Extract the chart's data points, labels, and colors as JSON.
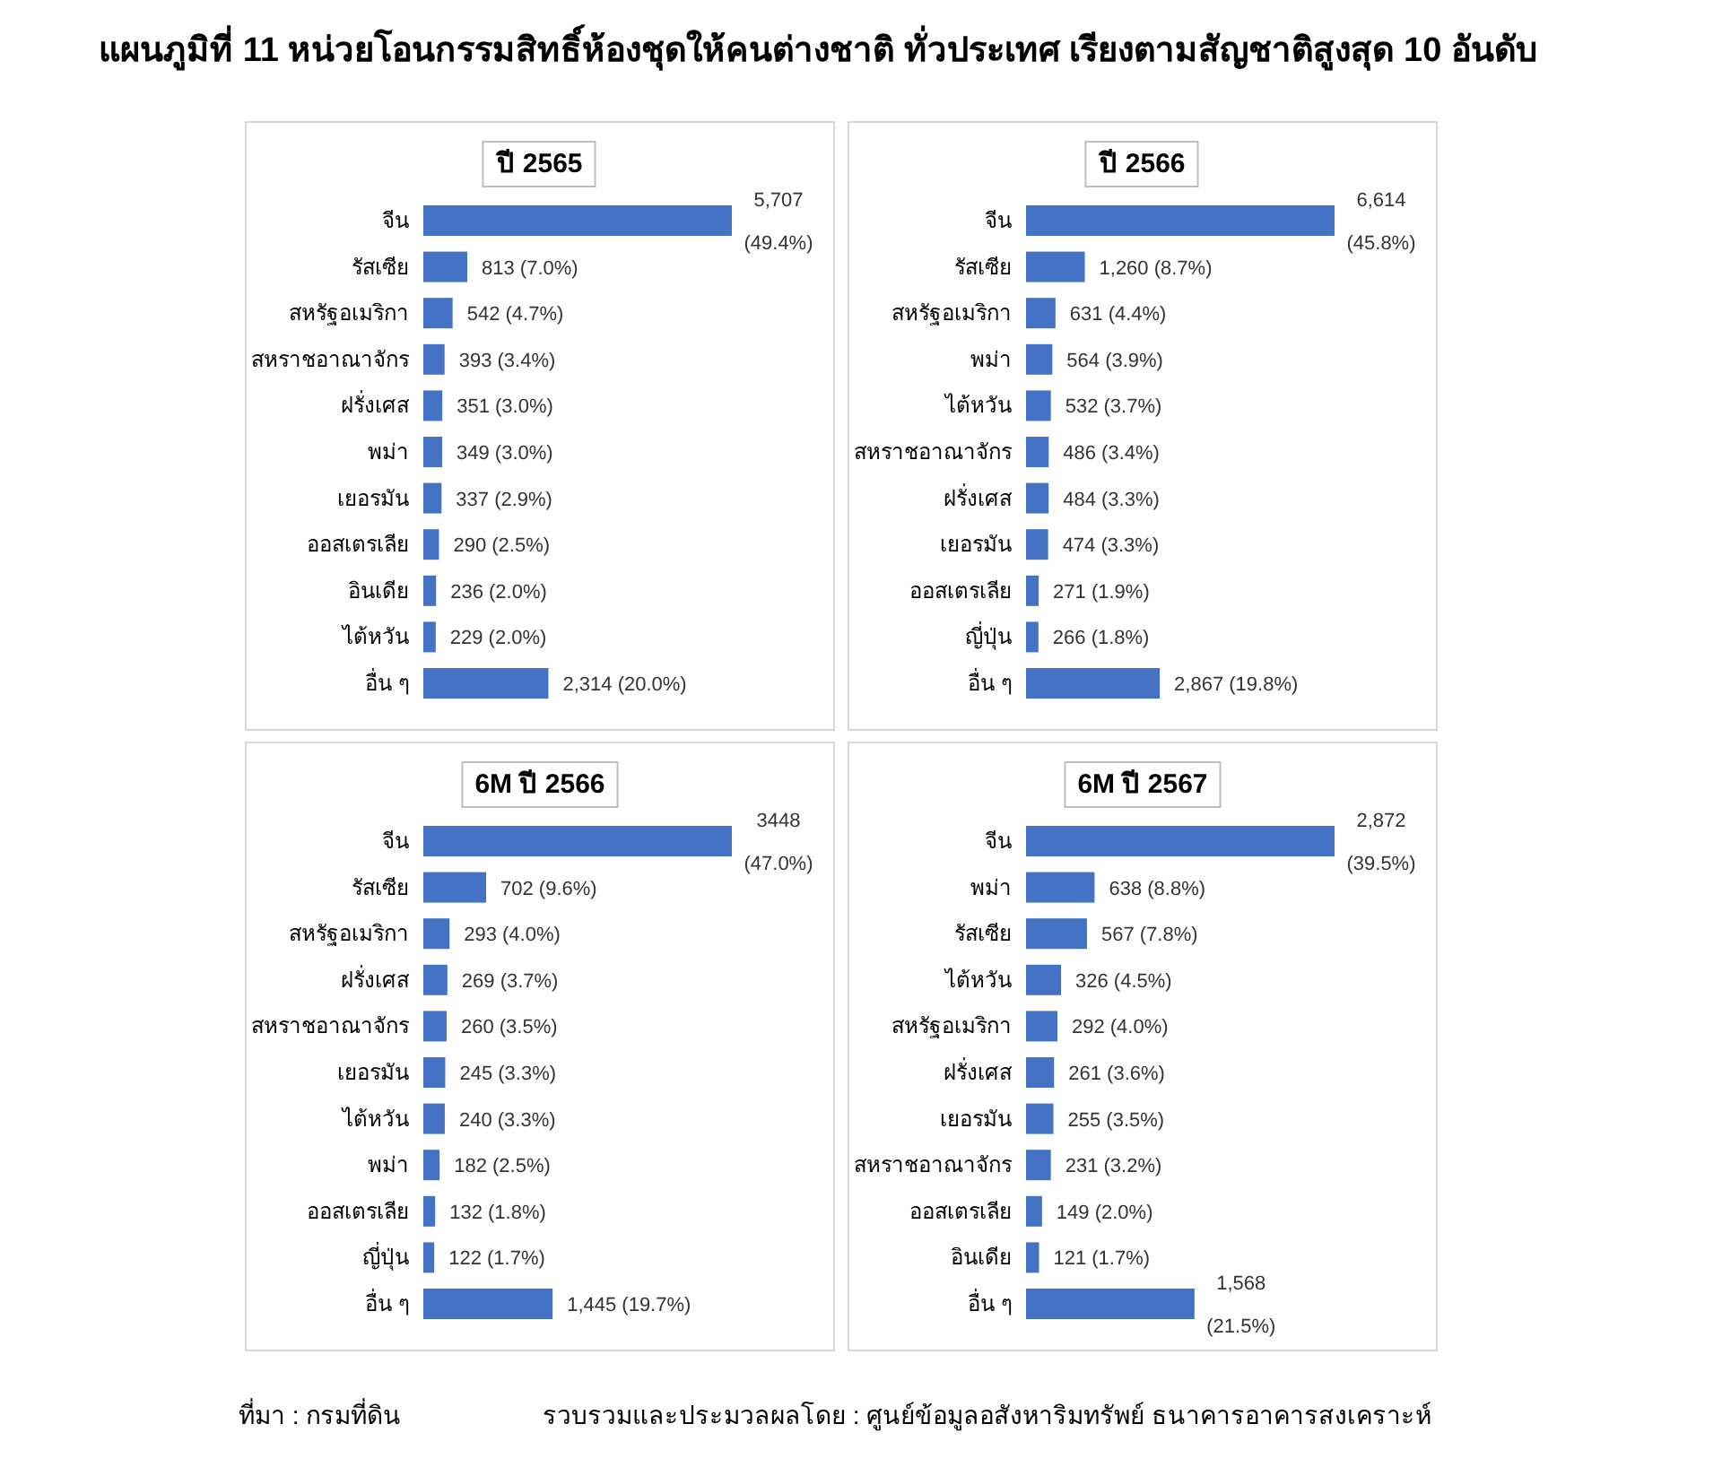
{
  "chart_data": [
    {
      "type": "other",
      "title": "แผนภูมิที่ 11 หน่วยโอนกรรมสิทธิ์ห้องชุดให้คนต่างชาติ ทั่วประเทศ  เรียงตามสัญชาติสูงสุด 10 อันดับ",
      "annotations": [
        "ที่มา : กรมที่ดิน",
        "รวบรวมและประมวลผลโดย : ศูนย์ข้อมูลอสังหาริมทรัพย์ ธนาคารอาคารสงเคราะห์"
      ]
    },
    {
      "type": "bar",
      "orientation": "horizontal",
      "title": "ปี 2565",
      "color": "#4472c4",
      "categories": [
        "จีน",
        "รัสเซีย",
        "สหรัฐอเมริกา",
        "สหราชอาณาจักร",
        "ฝรั่งเศส",
        "พม่า",
        "เยอรมัน",
        "ออสเตรเลีย",
        "อินเดีย",
        "ไต้หวัน",
        "อื่น ๆ"
      ],
      "values": [
        5707,
        813,
        542,
        393,
        351,
        349,
        337,
        290,
        236,
        229,
        2314
      ],
      "value_labels": [
        "5,707 (49.4%)",
        "813 (7.0%)",
        "542 (4.7%)",
        "393 (3.4%)",
        "351 (3.0%)",
        "349 (3.0%)",
        "337 (2.9%)",
        "290 (2.5%)",
        "236 (2.0%)",
        "229 (2.0%)",
        "2,314 (20.0%)"
      ]
    },
    {
      "type": "bar",
      "orientation": "horizontal",
      "title": "ปี 2566",
      "color": "#4472c4",
      "categories": [
        "จีน",
        "รัสเซีย",
        "สหรัฐอเมริกา",
        "พม่า",
        "ไต้หวัน",
        "สหราชอาณาจักร",
        "ฝรั่งเศส",
        "เยอรมัน",
        "ออสเตรเลีย",
        "ญี่ปุ่น",
        "อื่น ๆ"
      ],
      "values": [
        6614,
        1260,
        631,
        564,
        532,
        486,
        484,
        474,
        271,
        266,
        2867
      ],
      "value_labels": [
        "6,614 (45.8%)",
        "1,260 (8.7%)",
        "631 (4.4%)",
        "564 (3.9%)",
        "532 (3.7%)",
        "486 (3.4%)",
        "484 (3.3%)",
        "474 (3.3%)",
        "271 (1.9%)",
        "266 (1.8%)",
        "2,867 (19.8%)"
      ]
    },
    {
      "type": "bar",
      "orientation": "horizontal",
      "title": "6M ปี 2566",
      "color": "#4472c4",
      "categories": [
        "จีน",
        "รัสเซีย",
        "สหรัฐอเมริกา",
        "ฝรั่งเศส",
        "สหราชอาณาจักร",
        "เยอรมัน",
        "ไต้หวัน",
        "พม่า",
        "ออสเตรเลีย",
        "ญี่ปุ่น",
        "อื่น ๆ"
      ],
      "values": [
        3448,
        702,
        293,
        269,
        260,
        245,
        240,
        182,
        132,
        122,
        1445
      ],
      "value_labels": [
        "3448 (47.0%)",
        "702 (9.6%)",
        "293 (4.0%)",
        "269 (3.7%)",
        "260 (3.5%)",
        "245 (3.3%)",
        "240 (3.3%)",
        "182 (2.5%)",
        "132 (1.8%)",
        "122 (1.7%)",
        "1,445 (19.7%)"
      ]
    },
    {
      "type": "bar",
      "orientation": "horizontal",
      "title": "6M ปี 2567",
      "color": "#4472c4",
      "categories": [
        "จีน",
        "พม่า",
        "รัสเซีย",
        "ไต้หวัน",
        "สหรัฐอเมริกา",
        "ฝรั่งเศส",
        "เยอรมัน",
        "สหราชอาณาจักร",
        "ออสเตรเลีย",
        "อินเดีย",
        "อื่น ๆ"
      ],
      "values": [
        2872,
        638,
        567,
        326,
        292,
        261,
        255,
        231,
        149,
        121,
        1568
      ],
      "value_labels": [
        "2,872 (39.5%)",
        "638 (8.8%)",
        "567 (7.8%)",
        "326 (4.5%)",
        "292 (4.0%)",
        "261 (3.6%)",
        "255 (3.5%)",
        "231 (3.2%)",
        "149 (2.0%)",
        "121 (1.7%)",
        "1,568 (21.5%)"
      ]
    }
  ]
}
